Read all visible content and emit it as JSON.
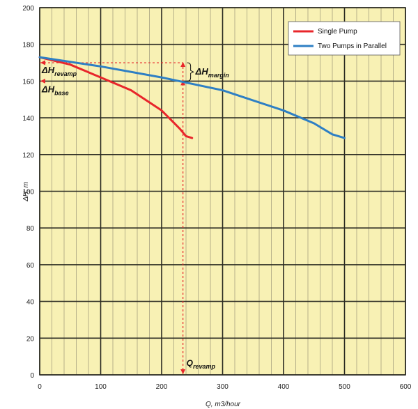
{
  "chart_data": {
    "type": "line",
    "title": "",
    "xlabel": "Q, m3/hour",
    "ylabel": "ΔH, m",
    "xlim": [
      0,
      600
    ],
    "ylim": [
      0,
      200
    ],
    "x_ticks": [
      0,
      100,
      200,
      300,
      400,
      500,
      600
    ],
    "y_ticks": [
      0,
      20,
      40,
      60,
      80,
      100,
      120,
      140,
      160,
      180,
      200
    ],
    "grid": true,
    "background_color": "#f8f1b4",
    "legend_position": "top-right",
    "series": [
      {
        "name": "Single Pump",
        "color": "#e8262b",
        "x": [
          0,
          50,
          100,
          150,
          200,
          230,
          240,
          250
        ],
        "y": [
          173,
          169,
          162,
          155,
          144,
          134,
          130,
          129
        ]
      },
      {
        "name": "Two Pumps in Parallel",
        "color": "#2e7fc4",
        "x": [
          0,
          100,
          200,
          300,
          400,
          450,
          480,
          500
        ],
        "y": [
          173,
          168,
          162,
          155,
          144,
          137,
          131,
          129
        ]
      }
    ],
    "annotations": {
      "dh_revamp": {
        "main": "ΔH",
        "sub": "revamp",
        "y": 170
      },
      "dh_base": {
        "main": "ΔH",
        "sub": "base",
        "y": 160
      },
      "dh_margin": {
        "main": "ΔH",
        "sub": "margin"
      },
      "q_revamp": {
        "main": "Q",
        "sub": "revamp",
        "x": 235
      }
    }
  }
}
